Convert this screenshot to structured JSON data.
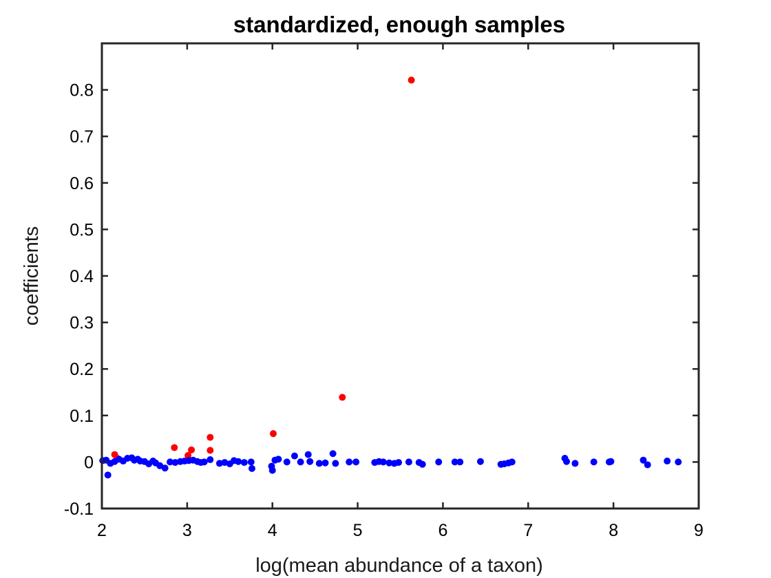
{
  "chart_data": {
    "type": "scatter",
    "title": "standardized, enough samples",
    "xlabel": "log(mean abundance of a taxon)",
    "ylabel": "coefficients",
    "xlim": [
      2,
      9
    ],
    "ylim": [
      -0.1,
      0.9
    ],
    "xticks": [
      2,
      3,
      4,
      5,
      6,
      7,
      8,
      9
    ],
    "xtick_labels": [
      "2",
      "3",
      "4",
      "5",
      "6",
      "7",
      "8",
      "9"
    ],
    "yticks": [
      -0.1,
      0,
      0.1,
      0.2,
      0.3,
      0.4,
      0.5,
      0.6,
      0.7,
      0.8
    ],
    "ytick_labels": [
      "-0.1",
      "0",
      "0.1",
      "0.2",
      "0.3",
      "0.4",
      "0.5",
      "0.6",
      "0.7",
      "0.8"
    ],
    "grid": false,
    "box": true,
    "series": [
      {
        "color": "#ff0000",
        "points": [
          [
            2.15,
            0.016
          ],
          [
            2.18,
            0.008
          ],
          [
            2.85,
            0.031
          ],
          [
            3.01,
            0.014
          ],
          [
            3.05,
            0.026
          ],
          [
            3.27,
            0.053
          ],
          [
            3.27,
            0.025
          ],
          [
            4.01,
            0.061
          ],
          [
            4.82,
            0.139
          ],
          [
            5.63,
            0.821
          ]
        ]
      },
      {
        "color": "#0000ff",
        "points": [
          [
            2.01,
            0.003
          ],
          [
            2.05,
            0.004
          ],
          [
            2.07,
            -0.028
          ],
          [
            2.1,
            -0.003
          ],
          [
            2.15,
            0.001
          ],
          [
            2.2,
            0.006
          ],
          [
            2.25,
            0.002
          ],
          [
            2.3,
            0.008
          ],
          [
            2.35,
            0.009
          ],
          [
            2.38,
            0.004
          ],
          [
            2.42,
            0.006
          ],
          [
            2.45,
            0.002
          ],
          [
            2.5,
            0.001
          ],
          [
            2.55,
            -0.004
          ],
          [
            2.6,
            0.002
          ],
          [
            2.63,
            -0.002
          ],
          [
            2.68,
            -0.008
          ],
          [
            2.74,
            -0.013
          ],
          [
            2.8,
            0.0
          ],
          [
            2.86,
            -0.001
          ],
          [
            2.92,
            0.001
          ],
          [
            2.97,
            0.002
          ],
          [
            3.02,
            0.003
          ],
          [
            3.07,
            0.004
          ],
          [
            3.12,
            0.001
          ],
          [
            3.16,
            -0.001
          ],
          [
            3.2,
            0.0
          ],
          [
            3.27,
            0.005
          ],
          [
            3.38,
            -0.003
          ],
          [
            3.44,
            -0.001
          ],
          [
            3.5,
            -0.004
          ],
          [
            3.55,
            0.003
          ],
          [
            3.6,
            0.001
          ],
          [
            3.67,
            -0.001
          ],
          [
            3.75,
            0.0
          ],
          [
            3.76,
            -0.014
          ],
          [
            3.99,
            -0.009
          ],
          [
            4.0,
            -0.018
          ],
          [
            4.03,
            0.004
          ],
          [
            4.07,
            0.006
          ],
          [
            4.17,
            0.0
          ],
          [
            4.26,
            0.013
          ],
          [
            4.33,
            0.0
          ],
          [
            4.42,
            0.016
          ],
          [
            4.44,
            0.001
          ],
          [
            4.55,
            -0.003
          ],
          [
            4.62,
            -0.002
          ],
          [
            4.71,
            0.018
          ],
          [
            4.74,
            -0.003
          ],
          [
            4.9,
            0.0
          ],
          [
            4.98,
            0.0
          ],
          [
            5.2,
            -0.001
          ],
          [
            5.25,
            0.001
          ],
          [
            5.3,
            0.0
          ],
          [
            5.37,
            -0.002
          ],
          [
            5.43,
            -0.003
          ],
          [
            5.48,
            -0.001
          ],
          [
            5.6,
            0.0
          ],
          [
            5.72,
            -0.001
          ],
          [
            5.76,
            -0.005
          ],
          [
            5.95,
            0.0
          ],
          [
            6.14,
            0.0
          ],
          [
            6.2,
            0.0
          ],
          [
            6.44,
            0.001
          ],
          [
            6.68,
            -0.005
          ],
          [
            6.72,
            -0.004
          ],
          [
            6.77,
            -0.002
          ],
          [
            6.81,
            0.0
          ],
          [
            7.43,
            0.008
          ],
          [
            7.45,
            0.001
          ],
          [
            7.55,
            -0.003
          ],
          [
            7.77,
            0.0
          ],
          [
            7.95,
            0.0
          ],
          [
            7.97,
            0.001
          ],
          [
            8.35,
            0.004
          ],
          [
            8.4,
            -0.006
          ],
          [
            8.63,
            0.002
          ],
          [
            8.76,
            0.0
          ]
        ]
      }
    ]
  }
}
